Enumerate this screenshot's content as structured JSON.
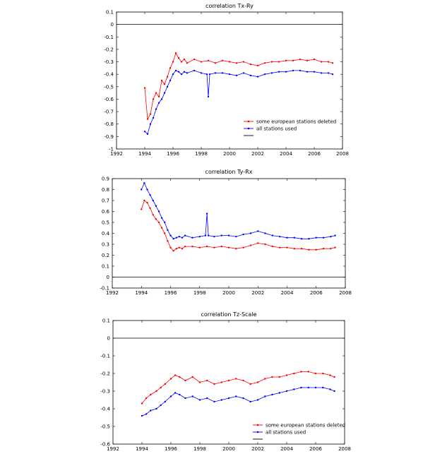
{
  "chart_data": [
    {
      "type": "line",
      "title": "correlation Tx-Ry",
      "xlabel": "",
      "ylabel": "",
      "xlim": [
        1992,
        2008
      ],
      "ylim": [
        -1,
        0.1
      ],
      "xticks": [
        1992,
        1994,
        1996,
        1998,
        2000,
        2002,
        2004,
        2006,
        2008
      ],
      "yticks": [
        0.1,
        0,
        -0.1,
        -0.2,
        -0.3,
        -0.4,
        -0.5,
        -0.6,
        -0.7,
        -0.8,
        -0.9,
        -1
      ],
      "zero_line": true,
      "legend_position": "lower-right",
      "series": [
        {
          "name": "some european stations deleted",
          "color": "#ff0000",
          "x": [
            1994.0,
            1994.2,
            1994.4,
            1994.6,
            1994.8,
            1995.0,
            1995.2,
            1995.4,
            1995.6,
            1995.8,
            1996.0,
            1996.2,
            1996.4,
            1996.6,
            1996.8,
            1997.0,
            1997.5,
            1998.0,
            1998.5,
            1999.0,
            1999.5,
            2000.0,
            2000.5,
            2001.0,
            2001.5,
            2002.0,
            2002.5,
            2003.0,
            2003.5,
            2004.0,
            2004.5,
            2005.0,
            2005.5,
            2006.0,
            2006.5,
            2007.0,
            2007.3
          ],
          "y": [
            -0.51,
            -0.76,
            -0.72,
            -0.6,
            -0.55,
            -0.58,
            -0.45,
            -0.48,
            -0.42,
            -0.35,
            -0.3,
            -0.23,
            -0.27,
            -0.3,
            -0.28,
            -0.31,
            -0.28,
            -0.3,
            -0.29,
            -0.31,
            -0.29,
            -0.3,
            -0.31,
            -0.3,
            -0.32,
            -0.33,
            -0.31,
            -0.3,
            -0.3,
            -0.29,
            -0.29,
            -0.28,
            -0.29,
            -0.28,
            -0.3,
            -0.3,
            -0.31
          ]
        },
        {
          "name": "all stations used",
          "color": "#0000ff",
          "x": [
            1994.0,
            1994.2,
            1994.4,
            1994.6,
            1994.8,
            1995.0,
            1995.2,
            1995.4,
            1995.6,
            1995.8,
            1996.0,
            1996.2,
            1996.4,
            1996.6,
            1996.8,
            1997.0,
            1997.5,
            1998.0,
            1998.4,
            1998.5,
            1998.6,
            1999.0,
            1999.5,
            2000.0,
            2000.5,
            2001.0,
            2001.5,
            2002.0,
            2002.5,
            2003.0,
            2003.5,
            2004.0,
            2004.5,
            2005.0,
            2005.5,
            2006.0,
            2006.5,
            2007.0,
            2007.3
          ],
          "y": [
            -0.86,
            -0.88,
            -0.8,
            -0.75,
            -0.68,
            -0.63,
            -0.6,
            -0.55,
            -0.5,
            -0.45,
            -0.4,
            -0.37,
            -0.38,
            -0.4,
            -0.38,
            -0.39,
            -0.37,
            -0.39,
            -0.4,
            -0.58,
            -0.4,
            -0.39,
            -0.39,
            -0.4,
            -0.41,
            -0.39,
            -0.41,
            -0.42,
            -0.4,
            -0.39,
            -0.38,
            -0.38,
            -0.37,
            -0.37,
            -0.38,
            -0.38,
            -0.39,
            -0.39,
            -0.4
          ]
        },
        {
          "name": "",
          "color": "#000000",
          "x": [],
          "y": []
        }
      ]
    },
    {
      "type": "line",
      "title": "correlation Ty-Rx",
      "xlabel": "",
      "ylabel": "",
      "xlim": [
        1992,
        2008
      ],
      "ylim": [
        -0.1,
        0.9
      ],
      "xticks": [
        1992,
        1994,
        1996,
        1998,
        2000,
        2002,
        2004,
        2006,
        2008
      ],
      "yticks": [
        0.9,
        0.8,
        0.7,
        0.6,
        0.5,
        0.4,
        0.3,
        0.2,
        0.1,
        0,
        -0.1
      ],
      "zero_line": true,
      "legend_position": "none",
      "series": [
        {
          "name": "some european stations deleted",
          "color": "#ff0000",
          "x": [
            1994.0,
            1994.2,
            1994.4,
            1994.6,
            1994.8,
            1995.0,
            1995.2,
            1995.4,
            1995.6,
            1995.8,
            1996.0,
            1996.2,
            1996.4,
            1996.6,
            1996.8,
            1997.0,
            1997.5,
            1998.0,
            1998.5,
            1999.0,
            1999.5,
            2000.0,
            2000.5,
            2001.0,
            2001.5,
            2002.0,
            2002.5,
            2003.0,
            2003.5,
            2004.0,
            2004.5,
            2005.0,
            2005.5,
            2006.0,
            2006.5,
            2007.0,
            2007.3
          ],
          "y": [
            0.62,
            0.7,
            0.68,
            0.63,
            0.57,
            0.53,
            0.5,
            0.45,
            0.4,
            0.33,
            0.27,
            0.24,
            0.26,
            0.27,
            0.26,
            0.28,
            0.28,
            0.27,
            0.28,
            0.27,
            0.28,
            0.27,
            0.26,
            0.27,
            0.29,
            0.31,
            0.3,
            0.28,
            0.27,
            0.27,
            0.26,
            0.26,
            0.25,
            0.25,
            0.26,
            0.26,
            0.27
          ]
        },
        {
          "name": "all stations used",
          "color": "#0000ff",
          "x": [
            1994.0,
            1994.2,
            1994.4,
            1994.6,
            1994.8,
            1995.0,
            1995.2,
            1995.4,
            1995.6,
            1995.8,
            1996.0,
            1996.2,
            1996.4,
            1996.6,
            1996.8,
            1997.0,
            1997.5,
            1998.0,
            1998.4,
            1998.5,
            1998.6,
            1999.0,
            1999.5,
            2000.0,
            2000.5,
            2001.0,
            2001.5,
            2002.0,
            2002.5,
            2003.0,
            2003.5,
            2004.0,
            2004.5,
            2005.0,
            2005.5,
            2006.0,
            2006.5,
            2007.0,
            2007.3
          ],
          "y": [
            0.8,
            0.86,
            0.8,
            0.75,
            0.7,
            0.65,
            0.6,
            0.54,
            0.5,
            0.43,
            0.38,
            0.35,
            0.36,
            0.37,
            0.36,
            0.38,
            0.36,
            0.37,
            0.38,
            0.58,
            0.38,
            0.37,
            0.38,
            0.38,
            0.37,
            0.39,
            0.4,
            0.42,
            0.4,
            0.38,
            0.37,
            0.36,
            0.36,
            0.35,
            0.35,
            0.36,
            0.36,
            0.37,
            0.38
          ]
        }
      ]
    },
    {
      "type": "line",
      "title": "correlation Tz-Scale",
      "xlabel": "",
      "ylabel": "",
      "xlim": [
        1992,
        2008
      ],
      "ylim": [
        -0.6,
        0.1
      ],
      "xticks": [
        1992,
        1994,
        1996,
        1998,
        2000,
        2002,
        2004,
        2006,
        2008
      ],
      "yticks": [
        0.1,
        0,
        -0.1,
        -0.2,
        -0.3,
        -0.4,
        -0.5,
        -0.6
      ],
      "zero_line": true,
      "legend_position": "lower-right",
      "series": [
        {
          "name": "some european stations deleted",
          "color": "#ff0000",
          "x": [
            1994.0,
            1994.3,
            1994.6,
            1995.0,
            1995.3,
            1995.6,
            1996.0,
            1996.3,
            1996.6,
            1997.0,
            1997.5,
            1998.0,
            1998.5,
            1999.0,
            1999.5,
            2000.0,
            2000.5,
            2001.0,
            2001.5,
            2002.0,
            2002.5,
            2003.0,
            2003.5,
            2004.0,
            2004.5,
            2005.0,
            2005.5,
            2006.0,
            2006.5,
            2007.0,
            2007.3
          ],
          "y": [
            -0.37,
            -0.34,
            -0.32,
            -0.3,
            -0.28,
            -0.26,
            -0.23,
            -0.21,
            -0.22,
            -0.24,
            -0.22,
            -0.25,
            -0.24,
            -0.26,
            -0.25,
            -0.24,
            -0.23,
            -0.24,
            -0.26,
            -0.25,
            -0.23,
            -0.22,
            -0.22,
            -0.21,
            -0.2,
            -0.19,
            -0.19,
            -0.2,
            -0.2,
            -0.21,
            -0.22
          ]
        },
        {
          "name": "all stations used",
          "color": "#0000ff",
          "x": [
            1994.0,
            1994.3,
            1994.6,
            1995.0,
            1995.3,
            1995.6,
            1996.0,
            1996.3,
            1996.6,
            1997.0,
            1997.5,
            1998.0,
            1998.5,
            1999.0,
            1999.5,
            2000.0,
            2000.5,
            2001.0,
            2001.5,
            2002.0,
            2002.5,
            2003.0,
            2003.5,
            2004.0,
            2004.5,
            2005.0,
            2005.5,
            2006.0,
            2006.5,
            2007.0,
            2007.3
          ],
          "y": [
            -0.44,
            -0.43,
            -0.41,
            -0.4,
            -0.38,
            -0.36,
            -0.33,
            -0.31,
            -0.32,
            -0.34,
            -0.33,
            -0.35,
            -0.34,
            -0.36,
            -0.35,
            -0.34,
            -0.33,
            -0.34,
            -0.36,
            -0.35,
            -0.33,
            -0.32,
            -0.31,
            -0.3,
            -0.29,
            -0.28,
            -0.28,
            -0.28,
            -0.28,
            -0.29,
            -0.3
          ]
        },
        {
          "name": "",
          "color": "#000000",
          "x": [],
          "y": []
        }
      ]
    }
  ]
}
